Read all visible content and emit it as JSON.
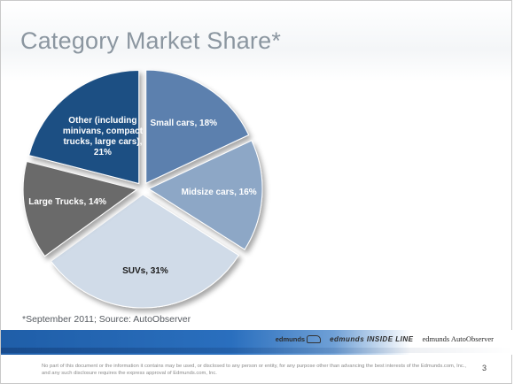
{
  "slide": {
    "title": "Category Market Share*",
    "footnote": "*September 2011; Source: AutoObserver",
    "disclaimer": "No part of this document or the information it contains may be used, or disclosed to any person or entity, for any purpose other than advancing the best interests of the Edmunds.com, Inc., and any such disclosure requires the express approval of Edmunds.com, Inc.",
    "page_number": "3",
    "logos": [
      "edmunds",
      "edmunds INSIDE LINE",
      "edmunds AutoObserver"
    ]
  },
  "chart_data": {
    "type": "pie",
    "title": "Category Market Share*",
    "slices": [
      {
        "label": "Small cars, 18%",
        "category": "Small cars",
        "value": 18,
        "color": "#5b80ae"
      },
      {
        "label": "Midsize cars, 16%",
        "category": "Midsize cars",
        "value": 16,
        "color": "#8da7c6"
      },
      {
        "label": "SUVs, 31%",
        "category": "SUVs",
        "value": 31,
        "color": "#d0dbe8"
      },
      {
        "label": "Large Trucks, 14%",
        "category": "Large Trucks",
        "value": 14,
        "color": "#6b6b6b"
      },
      {
        "label": "Other (including minivans, compact trucks, large cars), 21%",
        "category": "Other (including minivans, compact trucks, large cars)",
        "value": 21,
        "color": "#1f4f83"
      }
    ],
    "start_angle_deg": 0,
    "direction": "clockwise",
    "exploded": true
  }
}
